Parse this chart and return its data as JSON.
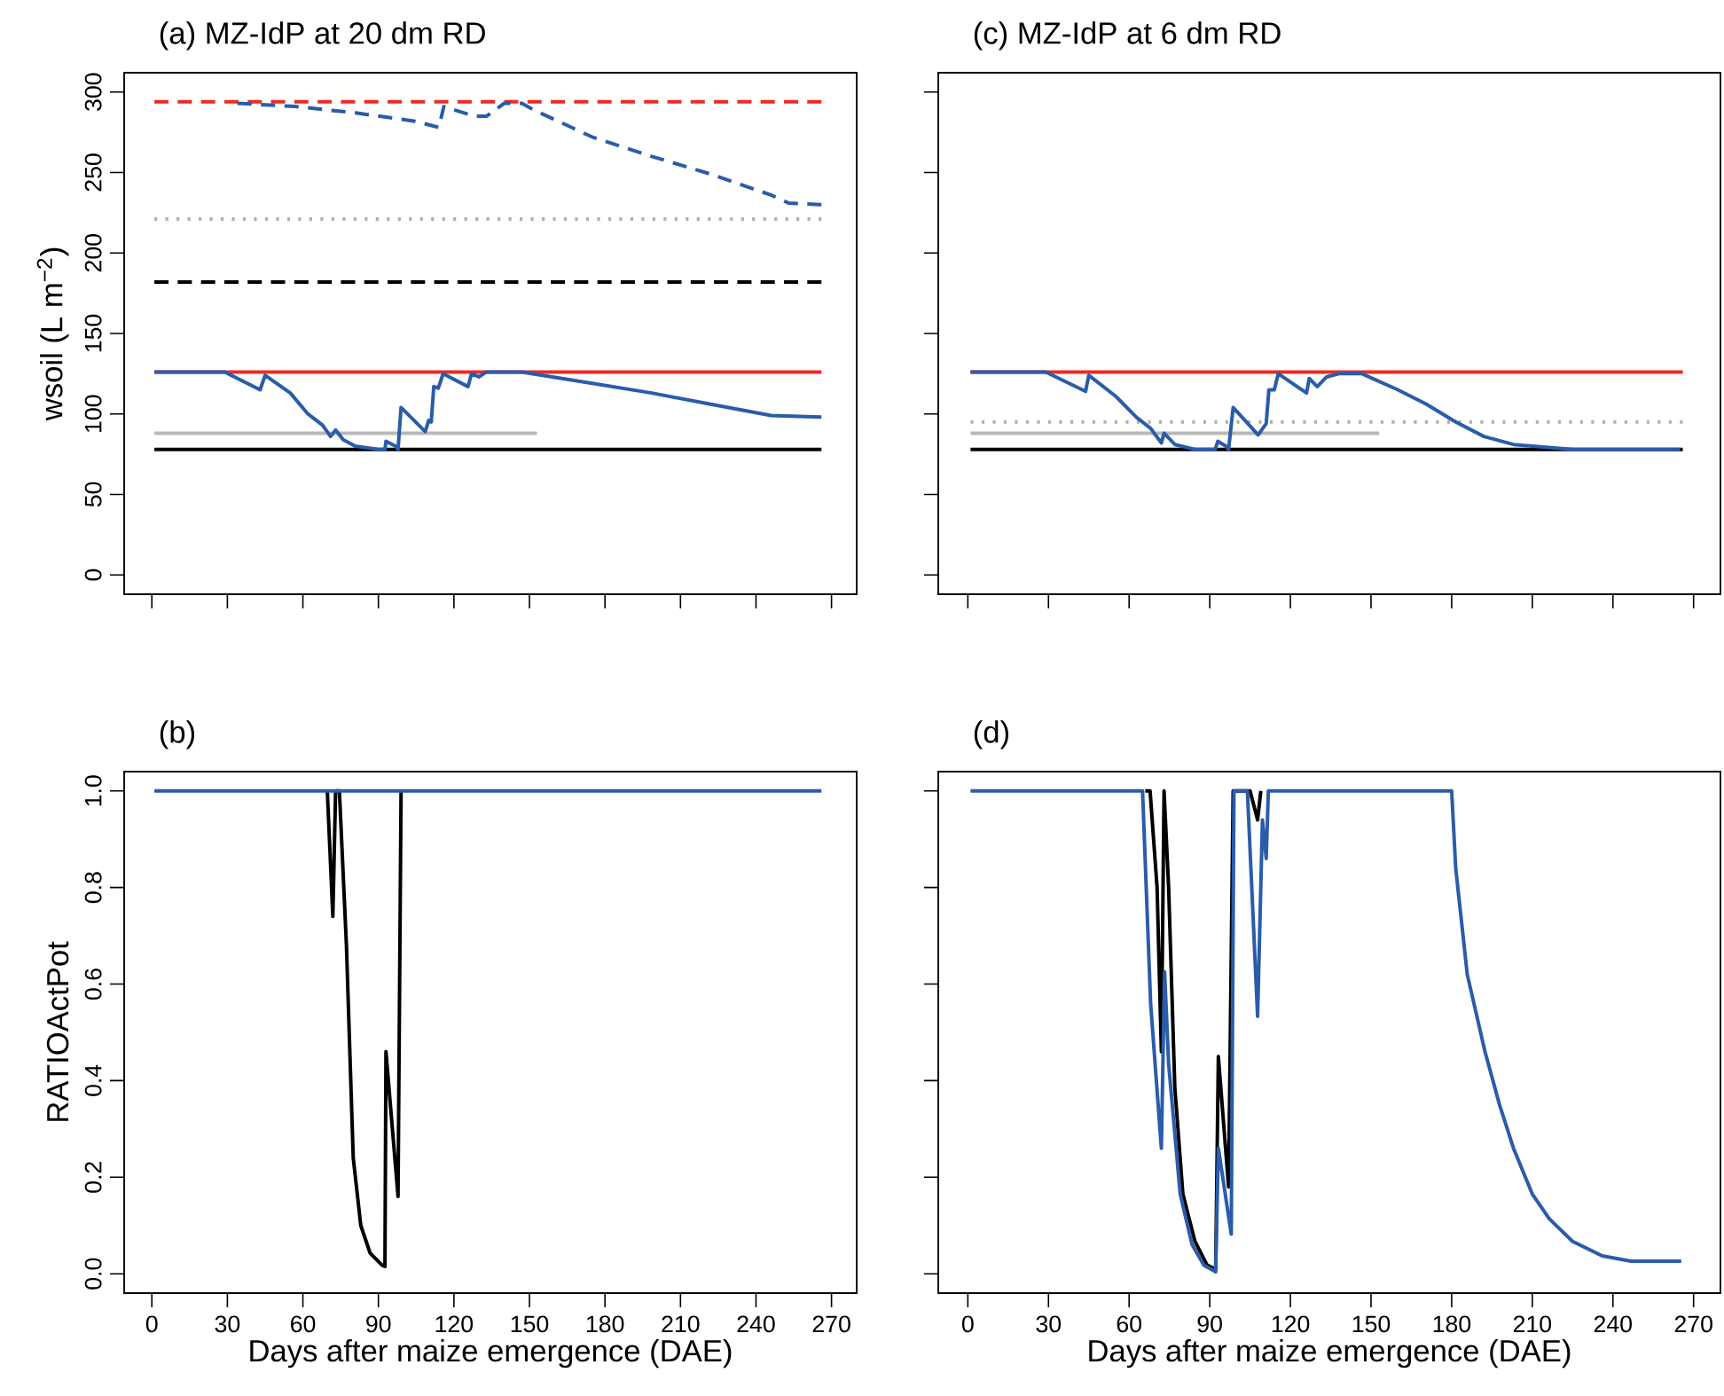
{
  "chart_data": [
    {
      "type": "line",
      "title": "(a) MZ-IdP at 20 dm RD",
      "ylabel": "wsoil (L m$^{−2}$)",
      "xlim": [
        -11,
        280
      ],
      "ylim": [
        -12,
        312
      ],
      "xticks": [
        0,
        30,
        60,
        90,
        120,
        150,
        180,
        210,
        240,
        270
      ],
      "yticks": [
        0,
        50,
        100,
        150,
        200,
        250,
        300
      ],
      "tick_labels": "y",
      "series": [
        {
          "color": "#ee2a24",
          "line_style": "dashed",
          "x": [
            1,
            266
          ],
          "values": [
            294,
            294
          ]
        },
        {
          "color": "#b0b0b0",
          "line_style": "dotted",
          "x": [
            1,
            266
          ],
          "values": [
            221,
            221
          ]
        },
        {
          "color": "#000000",
          "line_style": "dashed",
          "x": [
            1,
            266
          ],
          "values": [
            182,
            182
          ]
        },
        {
          "color": "#ee2a24",
          "line_style": "solid",
          "x": [
            1,
            266
          ],
          "values": [
            126,
            126
          ]
        },
        {
          "color": "#b8b8b8",
          "line_style": "solid",
          "x": [
            1,
            153
          ],
          "values": [
            88,
            88
          ]
        },
        {
          "color": "#000000",
          "line_style": "solid",
          "x": [
            1,
            266
          ],
          "values": [
            78,
            78
          ]
        },
        {
          "color": "#2a5caa",
          "line_style": "dashed",
          "x": [
            34,
            57,
            81,
            104,
            114,
            116,
            128,
            133,
            140,
            147,
            151.5,
            175,
            198.6,
            222,
            246,
            253,
            266
          ],
          "values": [
            293,
            291,
            287,
            282,
            278,
            291,
            285,
            285,
            293,
            293,
            289,
            272,
            260,
            249,
            236,
            231,
            230
          ]
        },
        {
          "color": "#2a5caa",
          "line_style": "solid",
          "x": [
            1,
            29,
            43,
            45,
            55,
            62,
            67.8,
            71,
            73,
            76,
            80.8,
            90,
            92.6,
            93,
            96.8,
            97.8,
            99,
            108.6,
            110,
            111,
            112,
            113.8,
            115.7,
            125.6,
            127,
            130,
            132.7,
            147,
            175,
            198.6,
            222,
            246,
            266
          ],
          "values": [
            126,
            126,
            115,
            124,
            113,
            100,
            93,
            86,
            90,
            84,
            80,
            78,
            78,
            83,
            80,
            78,
            104,
            89,
            96,
            95,
            117,
            116,
            125,
            117,
            125,
            123,
            126,
            126,
            119,
            113,
            106,
            99,
            98
          ]
        }
      ]
    },
    {
      "type": "line",
      "title": "(c) MZ-IdP at 6 dm RD",
      "xlim": [
        -11,
        280
      ],
      "ylim": [
        -12,
        312
      ],
      "xticks": [
        {
          "value": 0,
          "label": null
        },
        {
          "value": 30,
          "label": null
        },
        {
          "value": 60,
          "label": null
        },
        {
          "value": 90,
          "label": null
        },
        {
          "value": 120,
          "label": null
        },
        {
          "value": 150,
          "label": null
        },
        {
          "value": 180,
          "label": null
        },
        {
          "value": 210,
          "label": null
        },
        {
          "value": 240,
          "label": null
        },
        {
          "value": 270,
          "label": null
        }
      ],
      "yticks": [
        {
          "value": 0,
          "label": null
        },
        {
          "value": 50,
          "label": null
        },
        {
          "value": 100,
          "label": null
        },
        {
          "value": 150,
          "label": null
        },
        {
          "value": 200,
          "label": null
        },
        {
          "value": 250,
          "label": null
        },
        {
          "value": 300,
          "label": null
        }
      ],
      "tick_labels": false,
      "series": [
        {
          "color": "#ee2a24",
          "line_style": "solid",
          "x": [
            1,
            266
          ],
          "values": [
            126,
            126
          ]
        },
        {
          "color": "#b0b0b0",
          "line_style": "dotted",
          "x": [
            1,
            266
          ],
          "values": [
            95,
            95
          ]
        },
        {
          "color": "#b8b8b8",
          "line_style": "solid",
          "x": [
            1,
            153
          ],
          "values": [
            88,
            88
          ]
        },
        {
          "color": "#000000",
          "line_style": "solid",
          "x": [
            1,
            266
          ],
          "values": [
            78,
            78
          ]
        },
        {
          "color": "#2a5caa",
          "line_style": "solid",
          "x": [
            1,
            29,
            43.8,
            45,
            55,
            62.7,
            68,
            72,
            73,
            77,
            84.5,
            92,
            93,
            96,
            97,
            98.7,
            108,
            111,
            112,
            114,
            115.5,
            126,
            127,
            130,
            133.5,
            138,
            146.6,
            160,
            170.6,
            181.5,
            192,
            203,
            225,
            265
          ],
          "values": [
            126,
            126,
            114,
            124,
            111,
            98,
            91,
            82,
            88,
            81,
            78,
            78,
            83,
            80,
            78,
            104,
            87,
            94,
            115,
            115,
            125,
            113,
            122,
            117,
            123,
            125,
            125,
            115,
            106,
            95,
            86,
            81,
            78,
            78
          ]
        }
      ]
    },
    {
      "type": "line",
      "title": "(b)",
      "xlabel": "Days after maize emergence (DAE)",
      "ylabel": "RATIOActPot",
      "xlim": [
        -11,
        280
      ],
      "ylim": [
        -0.04,
        1.04
      ],
      "xticks": [
        0,
        30,
        60,
        90,
        120,
        150,
        180,
        210,
        240,
        270
      ],
      "yticks": [
        {
          "value": 0,
          "label": "0.0"
        },
        0.2,
        0.4,
        0.6,
        0.8,
        {
          "value": 1,
          "label": "1.0"
        }
      ],
      "series": [
        {
          "color": "#000000",
          "line_style": "solid",
          "x": [
            69.7,
            71.9,
            73,
            74.5,
            77.3,
            80,
            83,
            86.7,
            91.4,
            92.6,
            93,
            97.8,
            99
          ],
          "values": [
            1,
            0.74,
            1,
            1,
            0.68,
            0.24,
            0.1,
            0.043,
            0.018,
            0.015,
            0.46,
            0.16,
            1
          ]
        },
        {
          "color": "#2a5caa",
          "line_style": "solid",
          "x": [
            1,
            266
          ],
          "values": [
            1,
            1
          ]
        }
      ]
    },
    {
      "type": "line",
      "title": "(d)",
      "xlabel": "Days after maize emergence (DAE)",
      "xlim": [
        -11,
        280
      ],
      "ylim": [
        -0.04,
        1.04
      ],
      "xticks": [
        0,
        30,
        60,
        90,
        120,
        150,
        180,
        210,
        240,
        270
      ],
      "yticks": [
        {
          "value": 0,
          "label": null
        },
        {
          "value": 0.2,
          "label": null
        },
        {
          "value": 0.4,
          "label": null
        },
        {
          "value": 0.6,
          "label": null
        },
        {
          "value": 0.8,
          "label": null
        },
        {
          "value": 1,
          "label": null
        }
      ],
      "tick_labels": "x",
      "series": [
        {
          "color": "#000000",
          "line_style": "solid",
          "x": [
            66,
            67.8,
            70.4,
            72,
            73,
            74.7,
            77,
            80,
            84.5,
            89,
            92.2,
            93.2,
            97,
            98.7,
            105,
            107.8,
            109
          ],
          "values": [
            1,
            1,
            0.8,
            0.46,
            1,
            0.8,
            0.386,
            0.165,
            0.067,
            0.018,
            0.009,
            0.45,
            0.18,
            1,
            1,
            0.94,
            1
          ]
        },
        {
          "color": "#2a5caa",
          "line_style": "solid",
          "x": [
            1,
            65,
            68,
            72,
            73.2,
            74.7,
            79,
            83.4,
            87.8,
            92.2,
            93.2,
            98,
            99,
            104,
            107.8,
            109.6,
            111,
            111.8,
            180,
            181.5,
            185.8,
            192.4,
            197.8,
            203,
            210,
            216.3,
            225,
            236,
            246.8,
            265.4
          ],
          "values": [
            1,
            1,
            0.56,
            0.26,
            0.625,
            0.435,
            0.165,
            0.061,
            0.018,
            0.004,
            0.26,
            0.082,
            1,
            1,
            0.533,
            0.94,
            0.86,
            1,
            1,
            0.84,
            0.62,
            0.46,
            0.35,
            0.26,
            0.165,
            0.114,
            0.067,
            0.037,
            0.026,
            0.026
          ]
        }
      ]
    }
  ]
}
